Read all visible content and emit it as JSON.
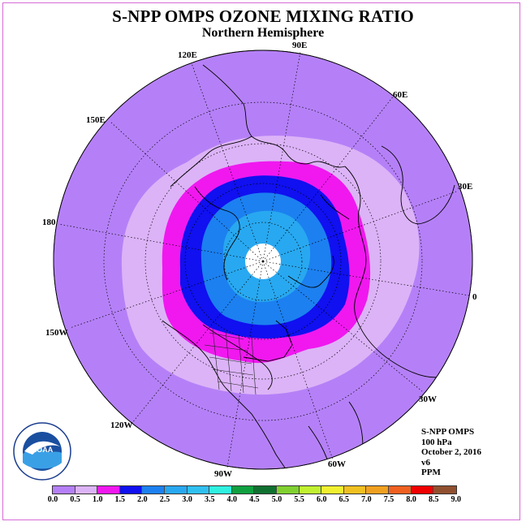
{
  "header": {
    "title": "S-NPP OMPS OZONE MIXING RATIO",
    "subtitle": "Northern Hemisphere"
  },
  "longitude_labels": [
    {
      "id": "90E",
      "text": "90E"
    },
    {
      "id": "60E",
      "text": "60E"
    },
    {
      "id": "30E",
      "text": "30E"
    },
    {
      "id": "0",
      "text": "0"
    },
    {
      "id": "30W",
      "text": "30W"
    },
    {
      "id": "60W",
      "text": "60W"
    },
    {
      "id": "90W",
      "text": "90W"
    },
    {
      "id": "120W",
      "text": "120W"
    },
    {
      "id": "150W",
      "text": "150W"
    },
    {
      "id": "180",
      "text": "180"
    },
    {
      "id": "150E",
      "text": "150E"
    },
    {
      "id": "120E",
      "text": "120E"
    }
  ],
  "metadata": {
    "instrument": "S-NPP OMPS",
    "level": "100 hPa",
    "date": "October 2, 2016",
    "version": "v6",
    "units": "PPM"
  },
  "colorbar": {
    "ticks": [
      "0.0",
      "0.5",
      "1.0",
      "1.5",
      "2.0",
      "2.5",
      "3.0",
      "3.5",
      "4.0",
      "4.5",
      "5.0",
      "5.5",
      "6.0",
      "6.5",
      "7.0",
      "7.5",
      "8.0",
      "8.5",
      "9.0"
    ],
    "colors": [
      "#b580f7",
      "#dcb3f7",
      "#f018ef",
      "#1010f0",
      "#1c80f0",
      "#28a8f0",
      "#30c0f0",
      "#30f0e0",
      "#10a040",
      "#107030",
      "#80d030",
      "#c0f030",
      "#f0f030",
      "#f0c020",
      "#f0a020",
      "#f06020",
      "#f00000",
      "#905030"
    ]
  },
  "logo": {
    "text": "NOAA",
    "ring_text": "NATIONAL OCEANIC AND ATMOSPHERIC ADMINISTRATION · U.S. DEPARTMENT OF COMMERCE"
  }
}
